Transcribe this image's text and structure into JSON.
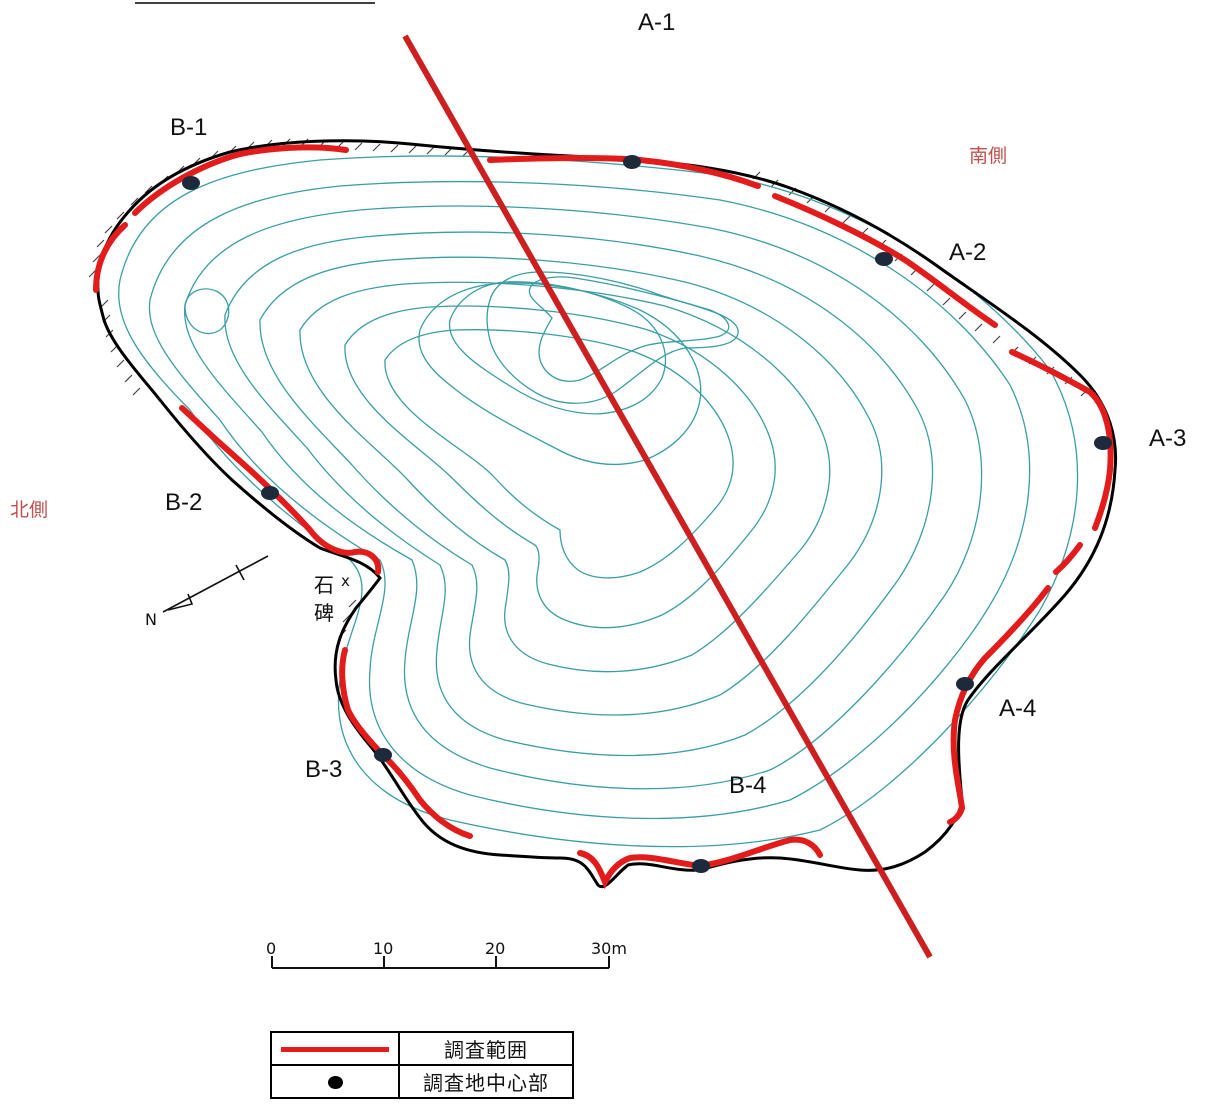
{
  "map": {
    "labels": {
      "a1": "A-1",
      "a2": "A-2",
      "a3": "A-3",
      "a4": "A-4",
      "b1": "B-1",
      "b2": "B-2",
      "b3": "B-3",
      "b4": "B-4"
    },
    "south_label": "南側",
    "north_label": "北側",
    "stone_char1": "石",
    "stone_char2": "碑",
    "stone_mark": "x",
    "north_arrow_label": "N",
    "scale": {
      "ticks": [
        "0",
        "10",
        "20",
        "30m"
      ]
    },
    "colors": {
      "survey_range": "#e21b1b",
      "section_line": "#cc1f1f",
      "contour": "#3a9ea5",
      "outline": "#000000",
      "center_point": "#1c2a3c"
    }
  },
  "legend": {
    "survey_range_label": "調査範囲",
    "survey_center_label": "調査地中心部"
  }
}
